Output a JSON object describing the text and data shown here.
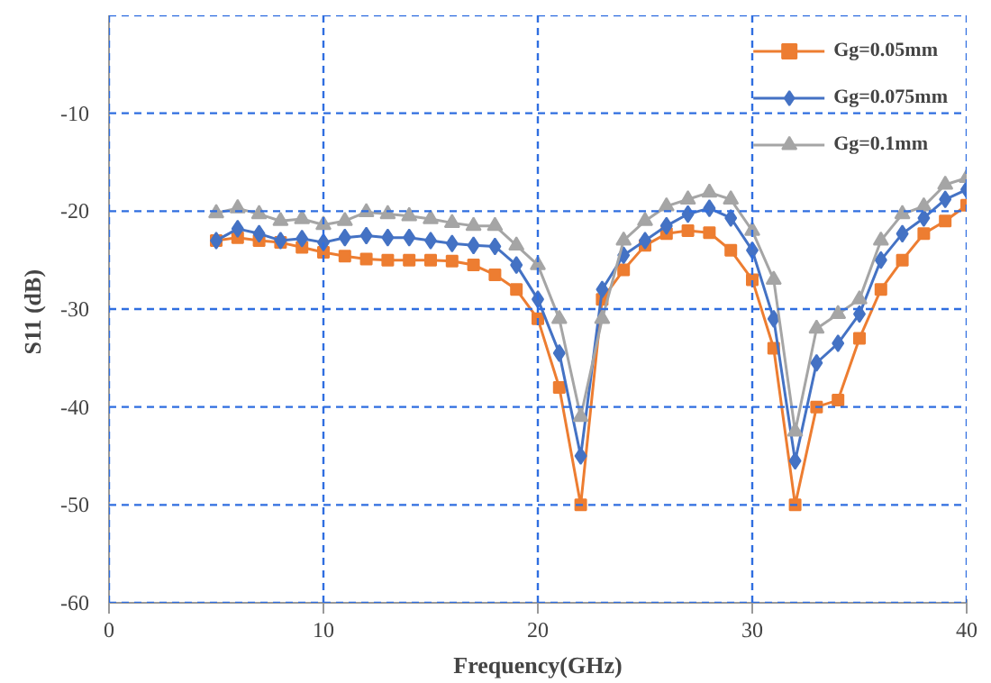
{
  "chart_data": {
    "type": "line",
    "xlabel": "Frequency(GHz)",
    "ylabel": "S11  (dB)",
    "x": [
      5,
      6,
      7,
      8,
      9,
      10,
      11,
      12,
      13,
      14,
      15,
      16,
      17,
      18,
      19,
      20,
      21,
      22,
      23,
      24,
      25,
      26,
      27,
      28,
      29,
      30,
      31,
      32,
      33,
      34,
      35,
      36,
      37,
      38,
      39,
      40
    ],
    "series": [
      {
        "name": "Gg=0.05mm",
        "color": "#ed7d31",
        "marker": "square",
        "values": [
          -23,
          -22.7,
          -23,
          -23.2,
          -23.7,
          -24.2,
          -24.6,
          -24.9,
          -25,
          -25,
          -25,
          -25.1,
          -25.5,
          -26.5,
          -28,
          -31,
          -38,
          -50,
          -29,
          -26,
          -23.5,
          -22.3,
          -22,
          -22.2,
          -24,
          -27,
          -34,
          -50,
          -40,
          -39.3,
          -33,
          -28,
          -25,
          -22.3,
          -21,
          -19.4
        ]
      },
      {
        "name": "Gg=0.075mm",
        "color": "#4472c4",
        "marker": "diamond",
        "values": [
          -23,
          -21.8,
          -22.3,
          -23,
          -22.8,
          -23.2,
          -22.7,
          -22.5,
          -22.7,
          -22.7,
          -23,
          -23.3,
          -23.5,
          -23.6,
          -25.5,
          -29,
          -34.5,
          -45,
          -28,
          -24.5,
          -23,
          -21.5,
          -20.3,
          -19.7,
          -20.7,
          -24,
          -31,
          -45.5,
          -35.5,
          -33.5,
          -30.5,
          -25,
          -22.3,
          -20.7,
          -18.8,
          -17.8
        ]
      },
      {
        "name": "Gg=0.1mm",
        "color": "#a5a5a5",
        "marker": "triangle",
        "values": [
          -20.2,
          -19.7,
          -20.3,
          -21,
          -20.8,
          -21.4,
          -21,
          -20.1,
          -20.3,
          -20.5,
          -20.8,
          -21.2,
          -21.5,
          -21.5,
          -23.5,
          -25.5,
          -31,
          -41,
          -31,
          -23,
          -21,
          -19.5,
          -18.8,
          -18.1,
          -18.8,
          -22,
          -27,
          -42.5,
          -32,
          -30.5,
          -29,
          -23,
          -20.3,
          -19.5,
          -17.3,
          -16.6
        ]
      }
    ],
    "xlim": [
      0,
      40
    ],
    "ylim": [
      -60,
      0
    ],
    "xticks": [
      0,
      10,
      20,
      30,
      40
    ],
    "yticks": [
      -60,
      -50,
      -40,
      -30,
      -20,
      -10,
      {
        "value": 0,
        "label": null
      }
    ],
    "grid": true,
    "legend": "top right",
    "line_style": "solid"
  }
}
